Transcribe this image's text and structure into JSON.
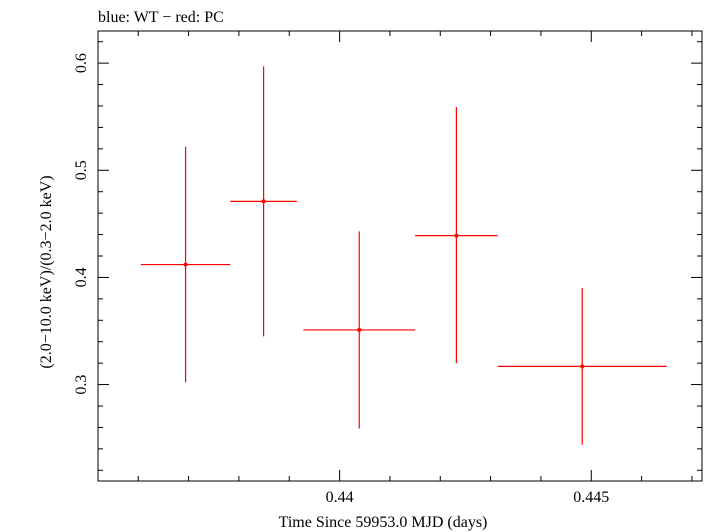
{
  "chart_data": {
    "type": "scatter",
    "title": "blue: WT − red: PC",
    "xlabel": "Time Since 59953.0 MJD (days)",
    "ylabel": "(2.0−10.0 keV)/(0.3−2.0 keV)",
    "xlim": [
      0.4352,
      0.4472
    ],
    "ylim": [
      0.21,
      0.63
    ],
    "x_major_ticks": [
      0.44,
      0.445
    ],
    "x_tick_labels": [
      "0.44",
      "0.445"
    ],
    "y_major_ticks": [
      0.3,
      0.4,
      0.5,
      0.6
    ],
    "y_tick_labels": [
      "0.3",
      "0.4",
      "0.5",
      "0.6"
    ],
    "grid": false,
    "series": [
      {
        "color": "#ff0000",
        "points": [
          {
            "x": 0.43694,
            "xerr": 0.00089,
            "y": 0.412,
            "yerr_low": 0.11,
            "yerr_high": 0.11
          },
          {
            "x": 0.43849,
            "xerr": 0.00066,
            "y": 0.471,
            "yerr_low": 0.126,
            "yerr_high": 0.126
          },
          {
            "x": 0.44039,
            "xerr": 0.00111,
            "y": 0.351,
            "yerr_low": 0.092,
            "yerr_high": 0.092
          },
          {
            "x": 0.44232,
            "xerr": 0.00082,
            "y": 0.439,
            "yerr_low": 0.119,
            "yerr_high": 0.12
          },
          {
            "x": 0.44482,
            "xerr": 0.00168,
            "y": 0.317,
            "yerr_low": 0.073,
            "yerr_high": 0.073
          }
        ]
      }
    ]
  }
}
